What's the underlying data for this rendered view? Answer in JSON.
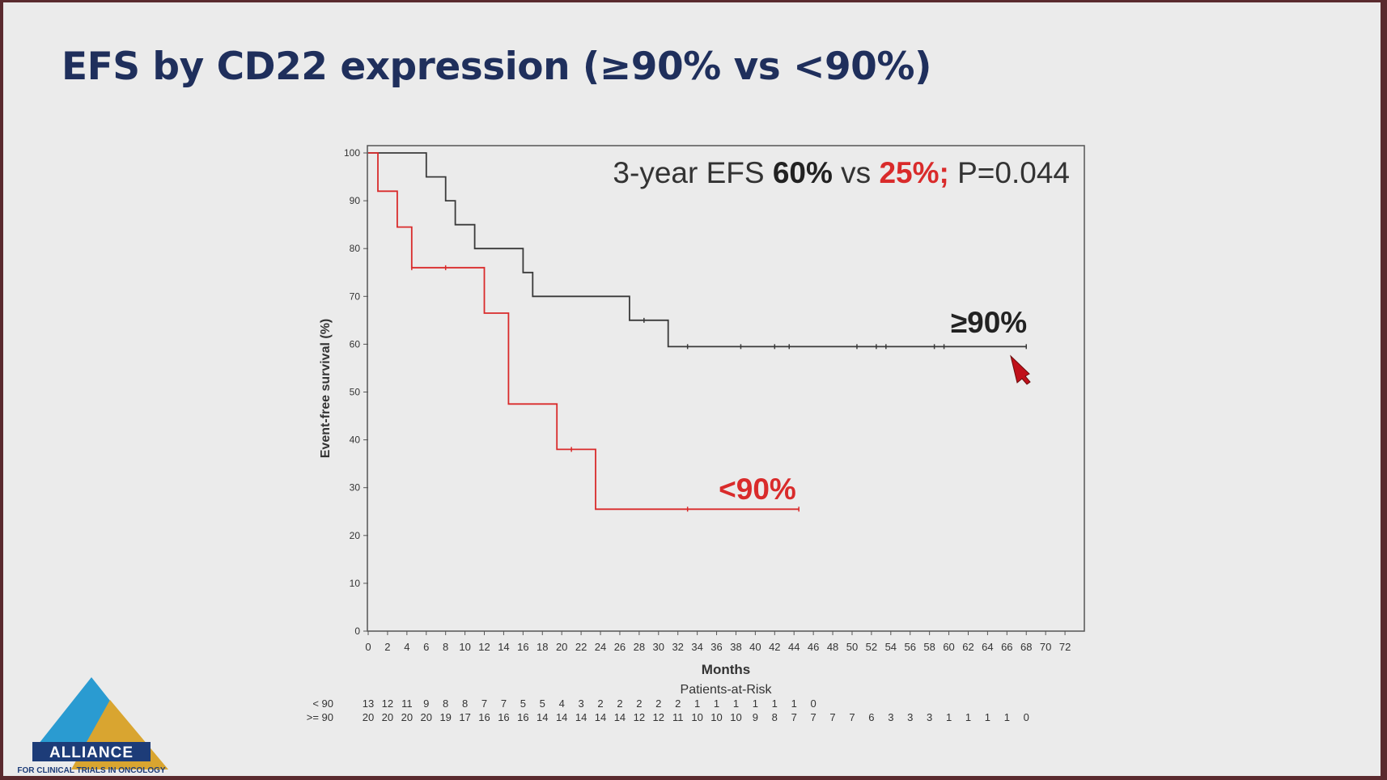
{
  "slide": {
    "title": "EFS by CD22 expression (≥90% vs <90%)"
  },
  "annotation": {
    "prefix": "3-year EFS ",
    "value_high": "60%",
    "vs": " vs ",
    "value_low": "25%;",
    "pvalue": " P=0.044"
  },
  "colors": {
    "high": "#3a3a3a",
    "low": "#d92b2b",
    "title": "#1f2f5c",
    "axis": "#555555"
  },
  "chart_data": {
    "type": "line",
    "title": "3-year EFS 60% vs 25%; P=0.044",
    "xlabel": "Months",
    "ylabel": "Event-free survival (%)",
    "xlim": [
      0,
      74
    ],
    "ylim": [
      0,
      100
    ],
    "xticks": [
      0,
      2,
      4,
      6,
      8,
      10,
      12,
      14,
      16,
      18,
      20,
      22,
      24,
      26,
      28,
      30,
      32,
      34,
      36,
      38,
      40,
      42,
      44,
      46,
      48,
      50,
      52,
      54,
      56,
      58,
      60,
      62,
      64,
      66,
      68,
      70,
      72
    ],
    "yticks": [
      0,
      10,
      20,
      30,
      40,
      50,
      60,
      70,
      80,
      90,
      100
    ],
    "series": [
      {
        "name": "≥90%",
        "label": "≥90%",
        "color": "#3a3a3a",
        "steps": [
          [
            0,
            100
          ],
          [
            6,
            100
          ],
          [
            6,
            95
          ],
          [
            8,
            95
          ],
          [
            8,
            90
          ],
          [
            9,
            90
          ],
          [
            9,
            85
          ],
          [
            11,
            85
          ],
          [
            11,
            80
          ],
          [
            16,
            80
          ],
          [
            16,
            75
          ],
          [
            17,
            75
          ],
          [
            17,
            70
          ],
          [
            27,
            70
          ],
          [
            27,
            65
          ],
          [
            31,
            65
          ],
          [
            31,
            59.5
          ],
          [
            68,
            59.5
          ]
        ],
        "censored": [
          28.5,
          33,
          38.5,
          42,
          43.5,
          50.5,
          52.5,
          53.5,
          58.5,
          59.5,
          68
        ]
      },
      {
        "name": "<90%",
        "label": "<90%",
        "color": "#d92b2b",
        "steps": [
          [
            0,
            100
          ],
          [
            1,
            100
          ],
          [
            1,
            92
          ],
          [
            3,
            92
          ],
          [
            3,
            84.5
          ],
          [
            4.5,
            84.5
          ],
          [
            4.5,
            76
          ],
          [
            12,
            76
          ],
          [
            12,
            66.5
          ],
          [
            14.5,
            66.5
          ],
          [
            14.5,
            47.5
          ],
          [
            19.5,
            47.5
          ],
          [
            19.5,
            38
          ],
          [
            23.5,
            38
          ],
          [
            23.5,
            25.5
          ],
          [
            44.5,
            25.5
          ]
        ],
        "censored": [
          4.5,
          8,
          21,
          33,
          44.5
        ]
      }
    ],
    "patients_at_risk": {
      "title": "Patients-at-Risk",
      "rows": [
        {
          "label": "< 90",
          "x": [
            0,
            2,
            4,
            6,
            8,
            10,
            12,
            14,
            16,
            18,
            20,
            22,
            24,
            26,
            28,
            30,
            32,
            34,
            36,
            38,
            40,
            42,
            44,
            46
          ],
          "values": [
            "13",
            "12",
            "11",
            "9",
            "8",
            "8",
            "7",
            "7",
            "5",
            "5",
            "4",
            "3",
            "2",
            "2",
            "2",
            "2",
            "2",
            "1",
            "1",
            "1",
            "1",
            "1",
            "1",
            "0"
          ]
        },
        {
          "label": ">= 90",
          "x": [
            0,
            2,
            4,
            6,
            8,
            10,
            12,
            14,
            16,
            18,
            20,
            22,
            24,
            26,
            28,
            30,
            32,
            34,
            36,
            38,
            40,
            42,
            44,
            46,
            48,
            50,
            52,
            54,
            56,
            58,
            60,
            62,
            64,
            66,
            68
          ],
          "values": [
            "20",
            "20",
            "20",
            "20",
            "19",
            "17",
            "16",
            "16",
            "16",
            "14",
            "14",
            "14",
            "14",
            "14",
            "12",
            "12",
            "11",
            "10",
            "10",
            "10",
            "9",
            "8",
            "7",
            "7",
            "7",
            "7",
            "6",
            "3",
            "3",
            "3",
            "1",
            "1",
            "1",
            "1",
            "0"
          ]
        }
      ]
    }
  },
  "logo": {
    "text": "ALLIANCE",
    "subtitle": "FOR CLINICAL TRIALS IN ONCOLOGY"
  }
}
